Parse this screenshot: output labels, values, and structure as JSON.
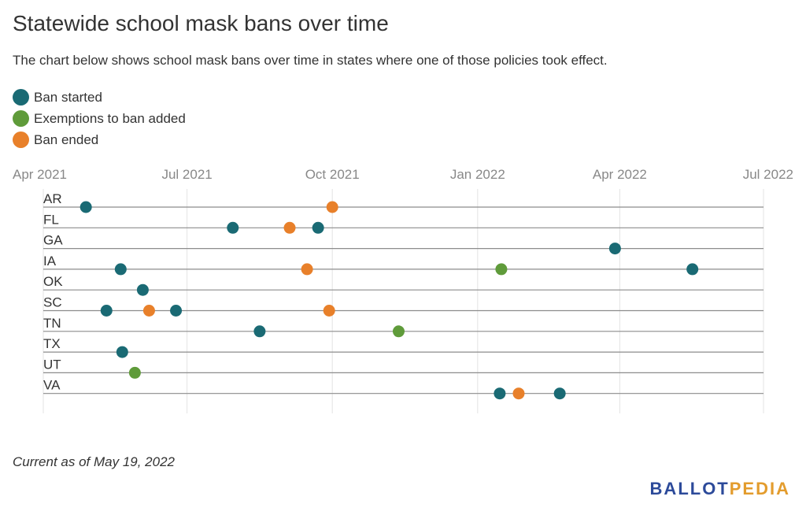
{
  "title": "Statewide school mask bans over time",
  "subtitle": "The chart below shows school mask bans over time in states where one of those policies took effect.",
  "legend": [
    {
      "label": "Ban started",
      "color": "#1a6a74"
    },
    {
      "label": "Exemptions to ban added",
      "color": "#5f9b3a"
    },
    {
      "label": "Ban ended",
      "color": "#e8802a"
    }
  ],
  "note": "Current as of May 19, 2022",
  "logo": {
    "part1": "BALLOT",
    "part2": "PEDIA",
    "color1": "#2c4a9a",
    "color2": "#e39c2d"
  },
  "chart_data": {
    "type": "scatter",
    "x_axis": {
      "type": "date",
      "range": [
        "2021-04-01",
        "2022-07-01"
      ],
      "ticks": [
        {
          "date": "2021-04-01",
          "label": "Apr 2021"
        },
        {
          "date": "2021-07-01",
          "label": "Jul 2021"
        },
        {
          "date": "2021-10-01",
          "label": "Oct 2021"
        },
        {
          "date": "2022-01-01",
          "label": "Jan 2022"
        },
        {
          "date": "2022-04-01",
          "label": "Apr 2022"
        },
        {
          "date": "2022-07-01",
          "label": "Jul 2022"
        }
      ],
      "grid": true
    },
    "categories": [
      "AR",
      "FL",
      "GA",
      "IA",
      "OK",
      "SC",
      "TN",
      "TX",
      "UT",
      "VA"
    ],
    "series": [
      {
        "name": "Ban started",
        "color": "#1a6a74",
        "points": [
          {
            "state": "AR",
            "date": "2021-04-28"
          },
          {
            "state": "FL",
            "date": "2021-07-30"
          },
          {
            "state": "FL",
            "date": "2021-09-22"
          },
          {
            "state": "GA",
            "date": "2022-03-29"
          },
          {
            "state": "IA",
            "date": "2021-05-20"
          },
          {
            "state": "IA",
            "date": "2022-05-17"
          },
          {
            "state": "OK",
            "date": "2021-06-03"
          },
          {
            "state": "SC",
            "date": "2021-05-11"
          },
          {
            "state": "SC",
            "date": "2021-06-24"
          },
          {
            "state": "TN",
            "date": "2021-08-16"
          },
          {
            "state": "TX",
            "date": "2021-05-21"
          },
          {
            "state": "VA",
            "date": "2022-01-15"
          },
          {
            "state": "VA",
            "date": "2022-02-22"
          }
        ]
      },
      {
        "name": "Exemptions to ban added",
        "color": "#5f9b3a",
        "points": [
          {
            "state": "IA",
            "date": "2022-01-16"
          },
          {
            "state": "TN",
            "date": "2021-11-12"
          },
          {
            "state": "UT",
            "date": "2021-05-29"
          }
        ]
      },
      {
        "name": "Ban ended",
        "color": "#e8802a",
        "points": [
          {
            "state": "AR",
            "date": "2021-10-01"
          },
          {
            "state": "FL",
            "date": "2021-09-04"
          },
          {
            "state": "IA",
            "date": "2021-09-15"
          },
          {
            "state": "SC",
            "date": "2021-06-07"
          },
          {
            "state": "SC",
            "date": "2021-09-29"
          },
          {
            "state": "VA",
            "date": "2022-01-27"
          }
        ]
      }
    ]
  }
}
